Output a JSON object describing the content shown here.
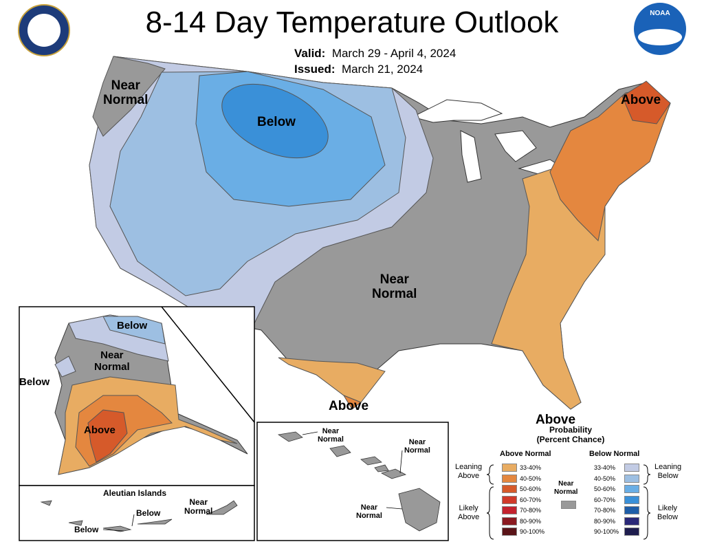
{
  "header": {
    "title": "8-14 Day Temperature Outlook",
    "valid_label": "Valid:",
    "valid_value": "March 29 - April 4, 2024",
    "issued_label": "Issued:",
    "issued_value": "March 21, 2024"
  },
  "logos": {
    "doc_seal": "department-of-commerce-seal",
    "noaa": "NOAA"
  },
  "conus_labels": {
    "near_normal_nw": [
      "Near",
      "Normal"
    ],
    "below": "Below",
    "above_ne": "Above",
    "near_normal_center": [
      "Near",
      "Normal"
    ],
    "above_tx": "Above",
    "above_fl": "Above"
  },
  "alaska_labels": {
    "below_n": "Below",
    "near_normal": [
      "Near",
      "Normal"
    ],
    "below_w": "Below",
    "above": "Above",
    "aleutian_title": "Aleutian Islands",
    "aleutian_below1": "Below",
    "aleutian_below2": "Below",
    "aleutian_near_normal": [
      "Near",
      "Normal"
    ]
  },
  "hawaii_labels": {
    "nn1": [
      "Near",
      "Normal"
    ],
    "nn2": [
      "Near",
      "Normal"
    ],
    "nn3": [
      "Near",
      "Normal"
    ]
  },
  "legend": {
    "title": [
      "Probability",
      "(Percent Chance)"
    ],
    "above_header": "Above Normal",
    "below_header": "Below Normal",
    "near_normal": [
      "Near",
      "Normal"
    ],
    "near_normal_color": "#999999",
    "leaning_above": [
      "Leaning",
      "Above"
    ],
    "likely_above": [
      "Likely",
      "Above"
    ],
    "leaning_below": [
      "Leaning",
      "Below"
    ],
    "likely_below": [
      "Likely",
      "Below"
    ],
    "above_items": [
      {
        "label": "33-40%",
        "color": "#e8ac62"
      },
      {
        "label": "40-50%",
        "color": "#e4873f"
      },
      {
        "label": "50-60%",
        "color": "#d65a2a"
      },
      {
        "label": "60-70%",
        "color": "#d03a2a"
      },
      {
        "label": "70-80%",
        "color": "#c4232e"
      },
      {
        "label": "80-90%",
        "color": "#8b1a20"
      },
      {
        "label": "90-100%",
        "color": "#5a1418"
      }
    ],
    "below_items": [
      {
        "label": "33-40%",
        "color": "#c2cbe4"
      },
      {
        "label": "40-50%",
        "color": "#9dbfe2"
      },
      {
        "label": "50-60%",
        "color": "#6aaee5"
      },
      {
        "label": "60-70%",
        "color": "#3a90d8"
      },
      {
        "label": "70-80%",
        "color": "#1f5ea8"
      },
      {
        "label": "80-90%",
        "color": "#2a2878"
      },
      {
        "label": "90-100%",
        "color": "#1e1d4e"
      }
    ]
  },
  "colors": {
    "near_normal": "#999999",
    "above_33_40": "#e8ac62",
    "above_40_50": "#e4873f",
    "above_50_60": "#d65a2a",
    "below_33_40": "#c2cbe4",
    "below_40_50": "#9dbfe2",
    "below_50_60": "#6aaee5",
    "below_60_70": "#3a90d8"
  }
}
